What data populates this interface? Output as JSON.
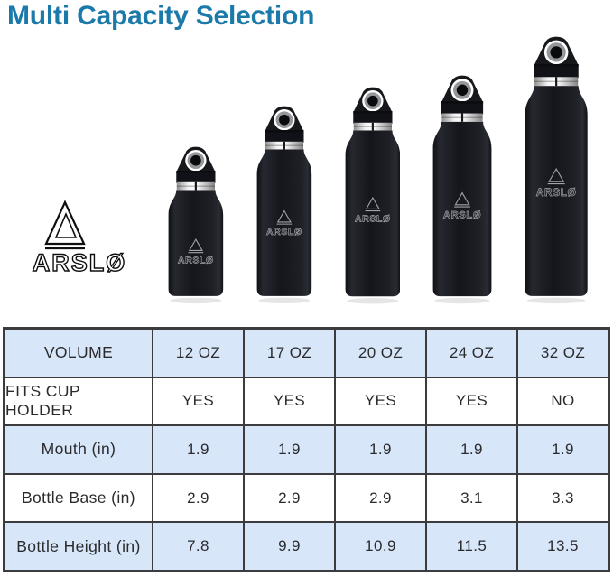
{
  "title": "Multi Capacity Selection",
  "brand": {
    "name": "ARSLØ"
  },
  "colors": {
    "accent": "#1c7aab",
    "table_row_alt": "#d7e6f8",
    "table_border": "#3c3c3f",
    "table_text": "#2b2b2e",
    "bottle_body": "#17191e",
    "bottle_logo": "#a0a4aa"
  },
  "bottles": [
    {
      "volume": "12 OZ",
      "height_in": 7.8,
      "base_in": 2.9,
      "brand_label": "ARSLØ"
    },
    {
      "volume": "17 OZ",
      "height_in": 9.9,
      "base_in": 2.9,
      "brand_label": "ARSLØ"
    },
    {
      "volume": "20 OZ",
      "height_in": 10.9,
      "base_in": 2.9,
      "brand_label": "ARSLØ"
    },
    {
      "volume": "24 OZ",
      "height_in": 11.5,
      "base_in": 3.1,
      "brand_label": "ARSLØ"
    },
    {
      "volume": "32 OZ",
      "height_in": 13.5,
      "base_in": 3.3,
      "brand_label": "ARSLØ"
    }
  ],
  "chart_data": {
    "type": "table",
    "title": "Multi Capacity Selection",
    "columns": [
      "VOLUME",
      "12 OZ",
      "17 OZ",
      "20 OZ",
      "24 OZ",
      "32 OZ"
    ],
    "rows": [
      {
        "label": "FITS CUP HOLDER",
        "values": [
          "YES",
          "YES",
          "YES",
          "YES",
          "NO"
        ]
      },
      {
        "label": "Mouth (in)",
        "values": [
          "1.9",
          "1.9",
          "1.9",
          "1.9",
          "1.9"
        ]
      },
      {
        "label": "Bottle Base (in)",
        "values": [
          "2.9",
          "2.9",
          "2.9",
          "3.1",
          "3.3"
        ]
      },
      {
        "label": "Bottle Height (in)",
        "values": [
          "7.8",
          "9.9",
          "10.9",
          "11.5",
          "13.5"
        ]
      }
    ],
    "layout": {
      "row_shading": "alternating: header blue, then white/blue",
      "grid": true
    }
  }
}
